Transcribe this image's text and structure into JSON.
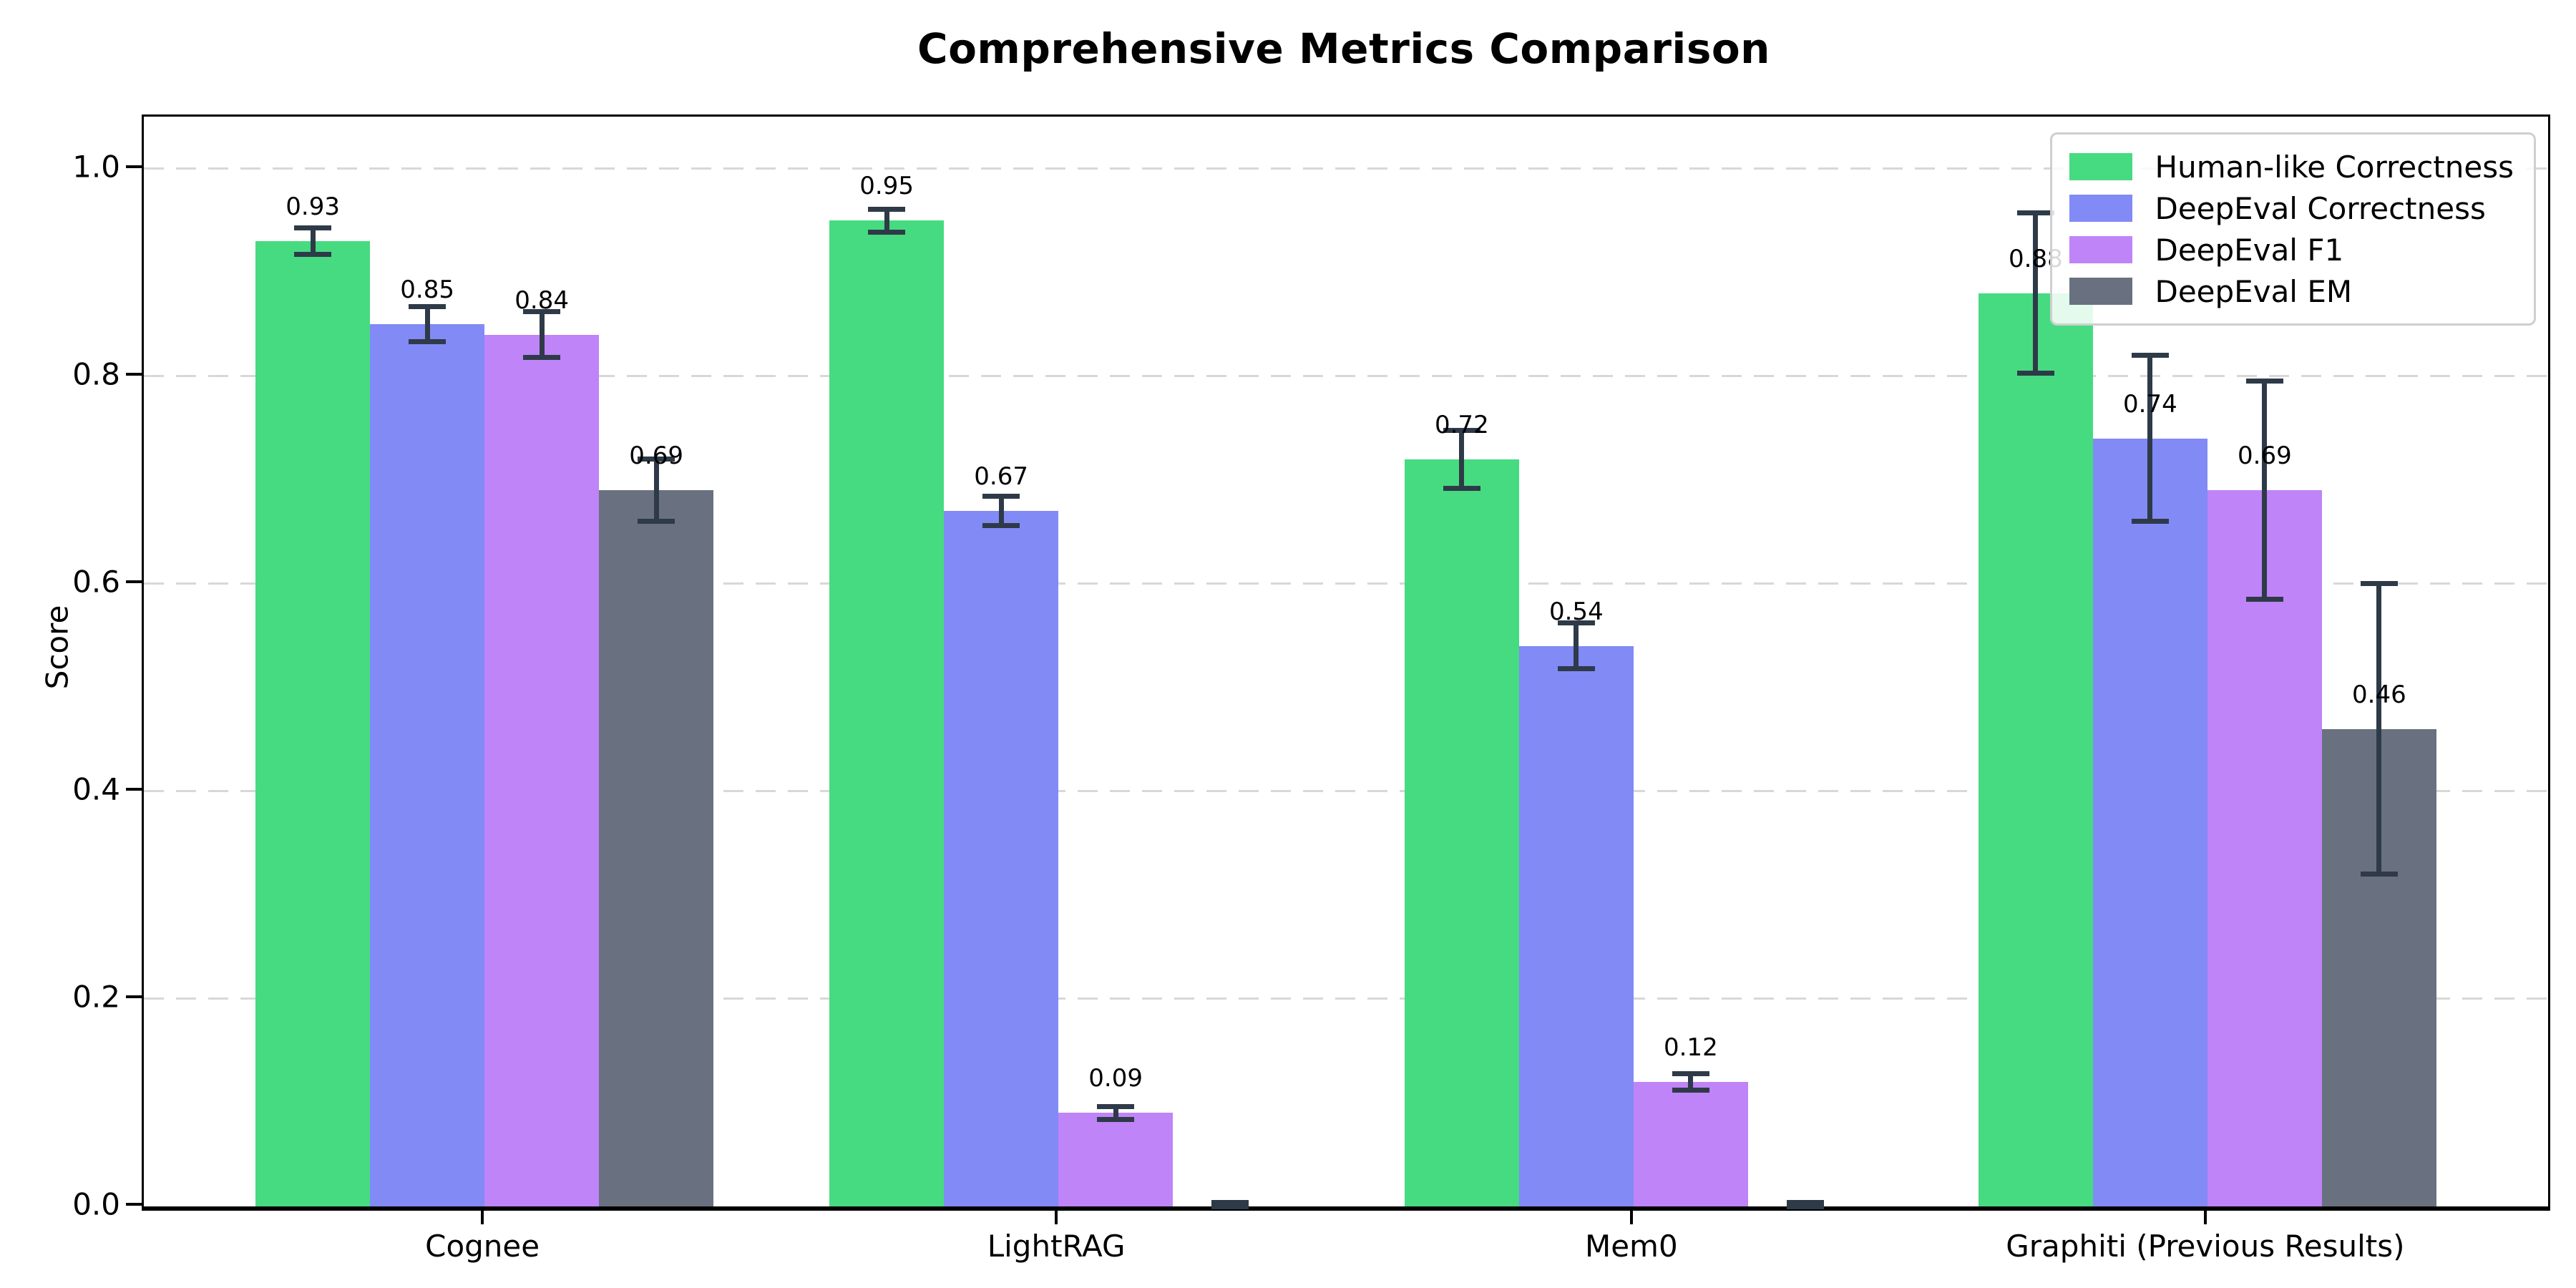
{
  "chart_data": {
    "type": "bar",
    "title": "Comprehensive Metrics Comparison",
    "ylabel": "Score",
    "xlabel": "",
    "categories": [
      "Cognee",
      "LightRAG",
      "Mem0",
      "Graphiti (Previous Results)"
    ],
    "ytick_labels": [
      "0.0",
      "0.2",
      "0.4",
      "0.6",
      "0.8",
      "1.0"
    ],
    "yticks": [
      0.0,
      0.2,
      0.4,
      0.6,
      0.8,
      1.0
    ],
    "ylim": [
      0,
      1.05
    ],
    "grid": "horizontal-dashed",
    "legend_position": "upper-right",
    "error_bars": true,
    "colors": {
      "grid": "#d8d8d8",
      "error_bar": "#2e3a48",
      "spine": "#000000"
    },
    "series": [
      {
        "name": "Human-like Correctness",
        "color": "#46db80",
        "values": [
          0.93,
          0.95,
          0.72,
          0.88
        ],
        "errors": [
          0.013,
          0.011,
          0.028,
          0.077
        ],
        "labels": [
          "0.93",
          "0.95",
          "0.72",
          "0.88"
        ]
      },
      {
        "name": "DeepEval Correctness",
        "color": "#818af5",
        "values": [
          0.85,
          0.67,
          0.54,
          0.74
        ],
        "errors": [
          0.017,
          0.014,
          0.022,
          0.08
        ],
        "labels": [
          "0.85",
          "0.67",
          "0.54",
          "0.74"
        ]
      },
      {
        "name": "DeepEval F1",
        "color": "#bf84f7",
        "values": [
          0.84,
          0.09,
          0.12,
          0.69
        ],
        "errors": [
          0.022,
          0.006,
          0.008,
          0.105
        ],
        "labels": [
          "0.84",
          "0.09",
          "0.12",
          "0.69"
        ]
      },
      {
        "name": "DeepEval EM",
        "color": "#697180",
        "values": [
          0.69,
          0.0,
          0.0,
          0.46
        ],
        "errors": [
          0.03,
          0.004,
          0.004,
          0.14
        ],
        "labels": [
          "0.69",
          "",
          "",
          "0.46"
        ]
      }
    ]
  }
}
